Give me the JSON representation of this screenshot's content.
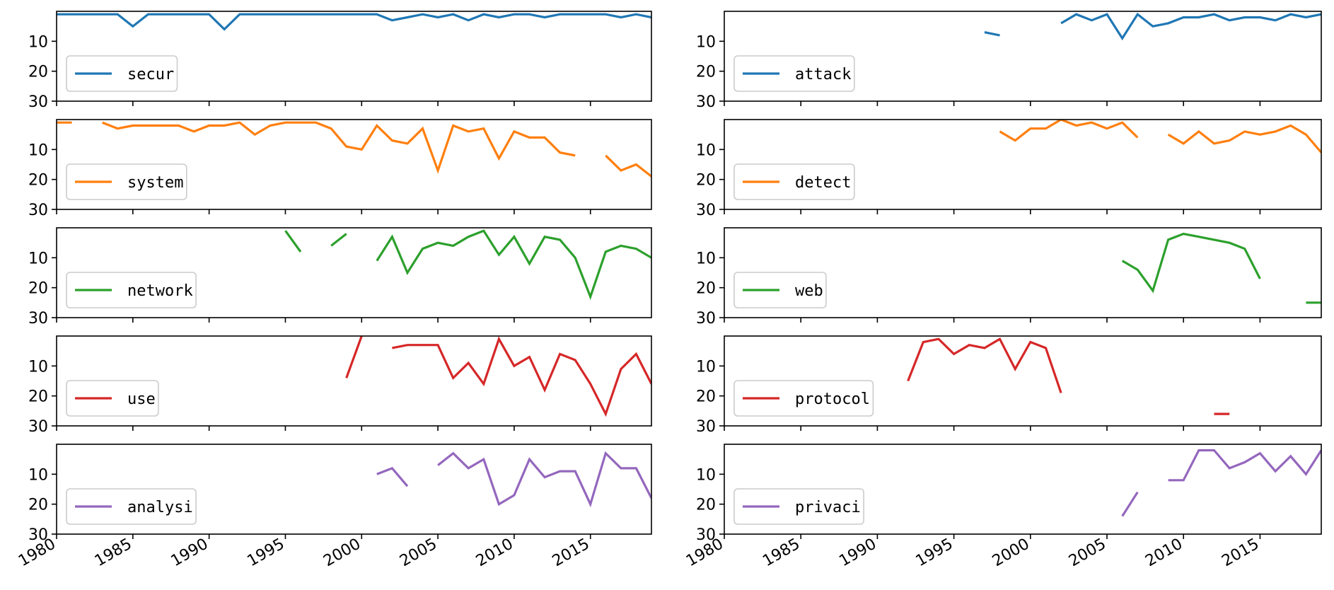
{
  "chart_data": {
    "type": "line",
    "x_range": [
      1980,
      2019
    ],
    "y_range_inverted": [
      0,
      30
    ],
    "ytick_labels": [
      "10",
      "20",
      "30"
    ],
    "xtick_labels": [
      "1980",
      "1985",
      "1990",
      "1995",
      "2000",
      "2005",
      "2010",
      "2015"
    ],
    "grid": false,
    "legend_placement": "lower-left",
    "colors": {
      "blue": "#1f77b4",
      "orange": "#ff7f0e",
      "green": "#2ca02c",
      "red": "#d62728",
      "purple": "#9467bd"
    },
    "panels": [
      {
        "name": "secur",
        "color": "#1f77b4",
        "column": 0,
        "row": 0,
        "values": [
          [
            1980,
            1
          ],
          [
            1981,
            1
          ],
          [
            1982,
            1
          ],
          [
            1983,
            1
          ],
          [
            1984,
            1
          ],
          [
            1985,
            5
          ],
          [
            1986,
            1
          ],
          [
            1987,
            1
          ],
          [
            1988,
            1
          ],
          [
            1989,
            1
          ],
          [
            1990,
            1
          ],
          [
            1991,
            6
          ],
          [
            1992,
            1
          ],
          [
            1993,
            1
          ],
          [
            1994,
            1
          ],
          [
            1995,
            1
          ],
          [
            1996,
            1
          ],
          [
            1997,
            1
          ],
          [
            1998,
            1
          ],
          [
            1999,
            1
          ],
          [
            2000,
            1
          ],
          [
            2001,
            1
          ],
          [
            2002,
            3
          ],
          [
            2003,
            2
          ],
          [
            2004,
            1
          ],
          [
            2005,
            2
          ],
          [
            2006,
            1
          ],
          [
            2007,
            3
          ],
          [
            2008,
            1
          ],
          [
            2009,
            2
          ],
          [
            2010,
            1
          ],
          [
            2011,
            1
          ],
          [
            2012,
            2
          ],
          [
            2013,
            1
          ],
          [
            2014,
            1
          ],
          [
            2015,
            1
          ],
          [
            2016,
            1
          ],
          [
            2017,
            2
          ],
          [
            2018,
            1
          ],
          [
            2019,
            2
          ]
        ]
      },
      {
        "name": "attack",
        "color": "#1f77b4",
        "column": 1,
        "row": 0,
        "values": [
          [
            1997,
            7
          ],
          [
            1998,
            8
          ],
          null,
          [
            2002,
            4
          ],
          [
            2003,
            1
          ],
          [
            2004,
            3
          ],
          [
            2005,
            1
          ],
          [
            2006,
            9
          ],
          [
            2007,
            1
          ],
          [
            2008,
            5
          ],
          [
            2009,
            4
          ],
          [
            2010,
            2
          ],
          [
            2011,
            2
          ],
          [
            2012,
            1
          ],
          [
            2013,
            3
          ],
          [
            2014,
            2
          ],
          [
            2015,
            2
          ],
          [
            2016,
            3
          ],
          [
            2017,
            1
          ],
          [
            2018,
            2
          ],
          [
            2019,
            1
          ]
        ]
      },
      {
        "name": "system",
        "color": "#ff7f0e",
        "column": 0,
        "row": 1,
        "values": [
          [
            1980,
            1
          ],
          [
            1981,
            1
          ],
          null,
          [
            1983,
            1
          ],
          [
            1984,
            3
          ],
          [
            1985,
            2
          ],
          [
            1986,
            2
          ],
          [
            1987,
            2
          ],
          [
            1988,
            2
          ],
          [
            1989,
            4
          ],
          [
            1990,
            2
          ],
          [
            1991,
            2
          ],
          [
            1992,
            1
          ],
          [
            1993,
            5
          ],
          [
            1994,
            2
          ],
          [
            1995,
            1
          ],
          [
            1996,
            1
          ],
          [
            1997,
            1
          ],
          [
            1998,
            3
          ],
          [
            1999,
            9
          ],
          [
            2000,
            10
          ],
          [
            2001,
            2
          ],
          [
            2002,
            7
          ],
          [
            2003,
            8
          ],
          [
            2004,
            3
          ],
          [
            2005,
            17
          ],
          [
            2006,
            2
          ],
          [
            2007,
            4
          ],
          [
            2008,
            3
          ],
          [
            2009,
            13
          ],
          [
            2010,
            4
          ],
          [
            2011,
            6
          ],
          [
            2012,
            6
          ],
          [
            2013,
            11
          ],
          [
            2014,
            12
          ],
          null,
          [
            2016,
            12
          ],
          [
            2017,
            17
          ],
          [
            2018,
            15
          ],
          [
            2019,
            19
          ]
        ]
      },
      {
        "name": "detect",
        "color": "#ff7f0e",
        "column": 1,
        "row": 1,
        "values": [
          [
            1998,
            4
          ],
          [
            1999,
            7
          ],
          [
            2000,
            3
          ],
          [
            2001,
            3
          ],
          [
            2002,
            0
          ],
          [
            2003,
            2
          ],
          [
            2004,
            1
          ],
          [
            2005,
            3
          ],
          [
            2006,
            1
          ],
          [
            2007,
            6
          ],
          null,
          [
            2009,
            5
          ],
          [
            2010,
            8
          ],
          [
            2011,
            4
          ],
          [
            2012,
            8
          ],
          [
            2013,
            7
          ],
          [
            2014,
            4
          ],
          [
            2015,
            5
          ],
          [
            2016,
            4
          ],
          [
            2017,
            2
          ],
          [
            2018,
            5
          ],
          [
            2019,
            11
          ]
        ]
      },
      {
        "name": "network",
        "color": "#2ca02c",
        "column": 0,
        "row": 2,
        "values": [
          [
            1995,
            1
          ],
          [
            1996,
            8
          ],
          null,
          [
            1998,
            6
          ],
          [
            1999,
            2
          ],
          null,
          [
            2001,
            11
          ],
          [
            2002,
            3
          ],
          [
            2003,
            15
          ],
          [
            2004,
            7
          ],
          [
            2005,
            5
          ],
          [
            2006,
            6
          ],
          [
            2007,
            3
          ],
          [
            2008,
            1
          ],
          [
            2009,
            9
          ],
          [
            2010,
            3
          ],
          [
            2011,
            12
          ],
          [
            2012,
            3
          ],
          [
            2013,
            4
          ],
          [
            2014,
            10
          ],
          [
            2015,
            23
          ],
          [
            2016,
            8
          ],
          [
            2017,
            6
          ],
          [
            2018,
            7
          ],
          [
            2019,
            10
          ]
        ]
      },
      {
        "name": "web",
        "color": "#2ca02c",
        "column": 1,
        "row": 2,
        "values": [
          [
            2006,
            11
          ],
          [
            2007,
            14
          ],
          [
            2008,
            21
          ],
          [
            2009,
            4
          ],
          [
            2010,
            2
          ],
          [
            2011,
            3
          ],
          [
            2012,
            4
          ],
          [
            2013,
            5
          ],
          [
            2014,
            7
          ],
          [
            2015,
            17
          ],
          null,
          [
            2018,
            25
          ],
          [
            2019,
            25
          ]
        ]
      },
      {
        "name": "use",
        "color": "#d62728",
        "column": 0,
        "row": 3,
        "values": [
          [
            1999,
            14
          ],
          [
            2000,
            0
          ],
          null,
          [
            2002,
            4
          ],
          [
            2003,
            3
          ],
          [
            2004,
            3
          ],
          [
            2005,
            3
          ],
          [
            2006,
            14
          ],
          [
            2007,
            9
          ],
          [
            2008,
            16
          ],
          [
            2009,
            1
          ],
          [
            2010,
            10
          ],
          [
            2011,
            7
          ],
          [
            2012,
            18
          ],
          [
            2013,
            6
          ],
          [
            2014,
            8
          ],
          [
            2015,
            16
          ],
          [
            2016,
            26
          ],
          [
            2017,
            11
          ],
          [
            2018,
            6
          ],
          [
            2019,
            16
          ]
        ]
      },
      {
        "name": "protocol",
        "color": "#d62728",
        "column": 1,
        "row": 3,
        "values": [
          [
            1992,
            15
          ],
          [
            1993,
            2
          ],
          [
            1994,
            1
          ],
          [
            1995,
            6
          ],
          [
            1996,
            3
          ],
          [
            1997,
            4
          ],
          [
            1998,
            1
          ],
          [
            1999,
            11
          ],
          [
            2000,
            2
          ],
          [
            2001,
            4
          ],
          [
            2002,
            19
          ],
          null,
          [
            2012,
            26
          ],
          [
            2013,
            26
          ]
        ]
      },
      {
        "name": "analysi",
        "color": "#9467bd",
        "column": 0,
        "row": 4,
        "values": [
          [
            2001,
            10
          ],
          [
            2002,
            8
          ],
          [
            2003,
            14
          ],
          null,
          [
            2005,
            7
          ],
          [
            2006,
            3
          ],
          [
            2007,
            8
          ],
          [
            2008,
            5
          ],
          [
            2009,
            20
          ],
          [
            2010,
            17
          ],
          [
            2011,
            5
          ],
          [
            2012,
            11
          ],
          [
            2013,
            9
          ],
          [
            2014,
            9
          ],
          [
            2015,
            20
          ],
          [
            2016,
            3
          ],
          [
            2017,
            8
          ],
          [
            2018,
            8
          ],
          [
            2019,
            18
          ]
        ]
      },
      {
        "name": "privaci",
        "color": "#9467bd",
        "column": 1,
        "row": 4,
        "values": [
          [
            2006,
            24
          ],
          [
            2007,
            16
          ],
          null,
          [
            2009,
            12
          ],
          [
            2010,
            12
          ],
          [
            2011,
            2
          ],
          [
            2012,
            2
          ],
          [
            2013,
            8
          ],
          [
            2014,
            6
          ],
          [
            2015,
            3
          ],
          [
            2016,
            9
          ],
          [
            2017,
            4
          ],
          [
            2018,
            10
          ],
          [
            2019,
            2
          ]
        ]
      }
    ]
  }
}
